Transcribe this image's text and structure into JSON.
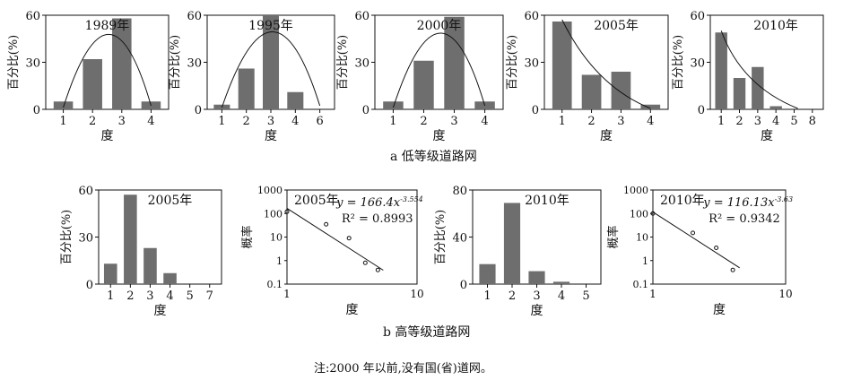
{
  "captions": {
    "a": "a 低等级道路网",
    "b": "b 高等级道路网",
    "note": "注:2000 年以前,没有国(省)道网。"
  },
  "colors": {
    "bar": "#6e6e6e",
    "axis": "#111111",
    "curve": "#111111",
    "marker": "#111111"
  },
  "chart_data": [
    {
      "id": "a1989",
      "type": "bar",
      "title": "1989年",
      "categories": [
        "1",
        "2",
        "3",
        "4"
      ],
      "values": [
        5,
        32,
        58,
        5
      ],
      "ylabel": "百分比(%)",
      "xlabel": "度",
      "yticks": [
        0,
        30,
        60
      ],
      "ylim": [
        0,
        60
      ],
      "fit": "curve"
    },
    {
      "id": "a1995",
      "type": "bar",
      "title": "1995年",
      "categories": [
        "1",
        "2",
        "3",
        "4",
        "6"
      ],
      "values": [
        3,
        26,
        60,
        11,
        0
      ],
      "ylabel": "百分比(%)",
      "xlabel": "度",
      "yticks": [
        0,
        30,
        60
      ],
      "ylim": [
        0,
        60
      ],
      "fit": "curve"
    },
    {
      "id": "a2000",
      "type": "bar",
      "title": "2000年",
      "categories": [
        "1",
        "2",
        "3",
        "4"
      ],
      "values": [
        5,
        31,
        59,
        5
      ],
      "ylabel": "百分比(%)",
      "xlabel": "度",
      "yticks": [
        0,
        30,
        60
      ],
      "ylim": [
        0,
        60
      ],
      "fit": "curve"
    },
    {
      "id": "a2005",
      "type": "bar",
      "title": "2005年",
      "categories": [
        "1",
        "2",
        "3",
        "4"
      ],
      "values": [
        56,
        22,
        24,
        3
      ],
      "ylabel": "百分比(%)",
      "xlabel": "度",
      "yticks": [
        0,
        30,
        60
      ],
      "ylim": [
        0,
        60
      ],
      "fit": "curve"
    },
    {
      "id": "a2010",
      "type": "bar",
      "title": "2010年",
      "categories": [
        "1",
        "2",
        "3",
        "4",
        "5",
        "8"
      ],
      "values": [
        49,
        20,
        27,
        2,
        0,
        0
      ],
      "ylabel": "百分比(%)",
      "xlabel": "度",
      "yticks": [
        0,
        30,
        60
      ],
      "ylim": [
        0,
        60
      ],
      "fit": "curve"
    },
    {
      "id": "b2005",
      "type": "bar",
      "title": "2005年",
      "categories": [
        "1",
        "2",
        "3",
        "4",
        "5",
        "7"
      ],
      "values": [
        13,
        57,
        23,
        7,
        0,
        0
      ],
      "ylabel": "百分比(%)",
      "xlabel": "度",
      "yticks": [
        0,
        30,
        60
      ],
      "ylim": [
        0,
        60
      ]
    },
    {
      "id": "b2005log",
      "type": "scatter",
      "title": "2005年",
      "scale": "log-log",
      "x": [
        1,
        2,
        3,
        4,
        5
      ],
      "y": [
        120,
        35,
        9,
        0.8,
        0.4
      ],
      "ylabel": "概率",
      "xlabel": "度",
      "xticks": [
        "1",
        "10"
      ],
      "yticks": [
        "0.1",
        "1",
        "10",
        "100",
        "1000"
      ],
      "xlim": [
        1,
        10
      ],
      "ylim": [
        0.1,
        1000
      ],
      "equation": {
        "base": "y = 166.4x",
        "exp": "-3.554",
        "r2": "R² = 0.8993"
      },
      "fit": {
        "a": 166.4,
        "b": -3.554
      }
    },
    {
      "id": "b2010",
      "type": "bar",
      "title": "2010年",
      "categories": [
        "1",
        "2",
        "3",
        "4",
        "5"
      ],
      "values": [
        17,
        69,
        11,
        2,
        0
      ],
      "ylabel": "百分比(%)",
      "xlabel": "度",
      "yticks": [
        0,
        40,
        80
      ],
      "ylim": [
        0,
        80
      ]
    },
    {
      "id": "b2010log",
      "type": "scatter",
      "title": "2010年",
      "scale": "log-log",
      "x": [
        1,
        2,
        3,
        4
      ],
      "y": [
        100,
        15,
        3.5,
        0.4
      ],
      "ylabel": "概率",
      "xlabel": "度",
      "xticks": [
        "1",
        "10"
      ],
      "yticks": [
        "0.1",
        "1",
        "10",
        "100",
        "1000"
      ],
      "xlim": [
        1,
        10
      ],
      "ylim": [
        0.1,
        1000
      ],
      "equation": {
        "base": "y = 116.13x",
        "exp": "-3.63",
        "r2": "R² = 0.9342"
      },
      "fit": {
        "a": 116.13,
        "b": -3.63
      }
    }
  ]
}
